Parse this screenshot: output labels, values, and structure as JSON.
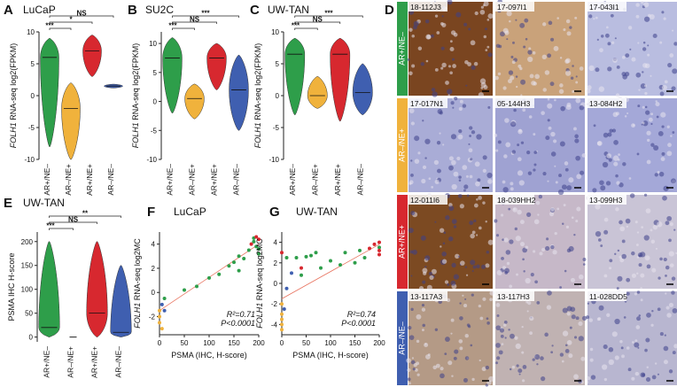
{
  "chart_data": [
    {
      "type": "violin",
      "panel": "A",
      "title": "LuCaP",
      "ylabel_gene": "FOLH1",
      "ylabel": " RNA-seq log2(FPKM)",
      "categories": [
        "AR+/NE–",
        "AR–/NE+",
        "AR+/NE+",
        "AR–/NE–"
      ],
      "colors": [
        "#2e9e4a",
        "#f0b23c",
        "#d7282f",
        "#3f5fb0"
      ],
      "values": [
        6,
        -2,
        7,
        1.5
      ],
      "mins": [
        -8,
        -10,
        3,
        1.2
      ],
      "maxs": [
        9,
        2,
        9.5,
        1.8
      ],
      "ylim": [
        -10,
        10
      ],
      "yticks": [
        -10,
        -5,
        0,
        5,
        10
      ],
      "significance": [
        "***",
        "*",
        "NS"
      ]
    },
    {
      "type": "violin",
      "panel": "B",
      "title": "SU2C",
      "ylabel_gene": "FOLH1",
      "ylabel": " RNA-seq log2(FPKM)",
      "categories": [
        "AR+/NE–",
        "AR–/NE+",
        "AR+/NE+",
        "AR–/NE–"
      ],
      "colors": [
        "#2e9e4a",
        "#f0b23c",
        "#d7282f",
        "#3f5fb0"
      ],
      "values": [
        7.5,
        0.5,
        7.5,
        2
      ],
      "mins": [
        -2,
        -3,
        2,
        -5
      ],
      "maxs": [
        11,
        3,
        10,
        8
      ],
      "ylim": [
        -10,
        12
      ],
      "yticks": [
        -10,
        -5,
        0,
        5,
        10
      ],
      "significance": [
        "***",
        "NS",
        "***"
      ]
    },
    {
      "type": "violin",
      "panel": "C",
      "title": "UW-TAN",
      "ylabel_gene": "FOLH1",
      "ylabel": " RNA-seq log2(FPKM)",
      "categories": [
        "AR+/NE–",
        "AR–/NE+",
        "AR+/NE+",
        "AR–/NE–"
      ],
      "colors": [
        "#2e9e4a",
        "#f0b23c",
        "#d7282f",
        "#3f5fb0"
      ],
      "values": [
        6.5,
        0,
        6.5,
        0.5
      ],
      "mins": [
        -3,
        -2,
        -4,
        -3
      ],
      "maxs": [
        9,
        3,
        9,
        5
      ],
      "ylim": [
        -10,
        10
      ],
      "yticks": [
        -10,
        -5,
        0,
        5,
        10
      ],
      "significance": [
        "***",
        "NS",
        "***"
      ]
    },
    {
      "type": "violin",
      "panel": "E",
      "title": "UW-TAN",
      "ylabel": "PSMA IHC H-score",
      "categories": [
        "AR+/NE–",
        "AR–/NE+",
        "AR+/NE+",
        "AR–/NE–"
      ],
      "colors": [
        "#2e9e4a",
        "#f0b23c",
        "#d7282f",
        "#3f5fb0"
      ],
      "values": [
        20,
        0,
        50,
        10
      ],
      "mins": [
        0,
        0,
        0,
        0
      ],
      "maxs": [
        200,
        0,
        200,
        150
      ],
      "ylim": [
        -10,
        220
      ],
      "yticks": [
        0,
        50,
        100,
        150,
        200
      ],
      "significance": [
        "***",
        "NS",
        "**"
      ]
    },
    {
      "type": "scatter",
      "panel": "F",
      "title": "LuCaP",
      "xlabel": "PSMA (IHC, H-score)",
      "ylabel_gene": "FOLH1",
      "ylabel": " RNA-seq log2MC",
      "xlim": [
        0,
        200
      ],
      "xticks": [
        0,
        50,
        100,
        150,
        200
      ],
      "ylim": [
        -3.5,
        5
      ],
      "yticks": [
        -2,
        0,
        2,
        4
      ],
      "series": [
        {
          "color": "#2e9e4a",
          "x": [
            120,
            150,
            160,
            170,
            180,
            190,
            195,
            200,
            200,
            160,
            140,
            100,
            75,
            50,
            10,
            190
          ],
          "y": [
            1.5,
            2.5,
            3,
            2.8,
            3.5,
            4.2,
            3.8,
            3.2,
            3.6,
            1.8,
            2.2,
            1.2,
            0.5,
            0.2,
            -0.5,
            4.5
          ]
        },
        {
          "color": "#d7282f",
          "x": [
            195,
            200,
            185
          ],
          "y": [
            4.6,
            4.4,
            4
          ]
        },
        {
          "color": "#f0b23c",
          "x": [
            0,
            0,
            0,
            5
          ],
          "y": [
            -1.5,
            -2,
            -2.5,
            -3
          ]
        },
        {
          "color": "#3f5fb0",
          "x": [
            5,
            10
          ],
          "y": [
            -1,
            -1.5
          ]
        }
      ],
      "fit": {
        "color": "#e8735f",
        "x": [
          0,
          200
        ],
        "y": [
          -1.5,
          4
        ]
      },
      "annotations": [
        "R²=0.71",
        "P<0.0001"
      ]
    },
    {
      "type": "scatter",
      "panel": "G",
      "title": "UW-TAN",
      "xlabel": "PSMA (IHC, H-score)",
      "ylabel_gene": "FOLH1",
      "ylabel": " RNA-seq log2MC",
      "xlim": [
        0,
        200
      ],
      "xticks": [
        0,
        50,
        100,
        150,
        200
      ],
      "ylim": [
        -5,
        5
      ],
      "yticks": [
        -4,
        -2,
        0,
        2,
        4
      ],
      "series": [
        {
          "color": "#2e9e4a",
          "x": [
            10,
            30,
            50,
            60,
            70,
            100,
            120,
            130,
            150,
            160,
            170,
            200,
            80,
            40
          ],
          "y": [
            2.5,
            2.5,
            2.6,
            2.7,
            3,
            2.2,
            1.8,
            3,
            2,
            3.2,
            2.5,
            3.5,
            1.5,
            0.8
          ]
        },
        {
          "color": "#d7282f",
          "x": [
            0,
            40,
            190,
            200,
            200,
            200,
            180
          ],
          "y": [
            3,
            1.5,
            3.8,
            4,
            3.2,
            2.8,
            3.4
          ]
        },
        {
          "color": "#3f5fb0",
          "x": [
            20,
            10,
            5
          ],
          "y": [
            1,
            -0.5,
            -2.5
          ]
        },
        {
          "color": "#f0b23c",
          "x": [
            0,
            0,
            0,
            0,
            0
          ],
          "y": [
            -2,
            -3,
            -4,
            -4.5,
            -3.5
          ]
        }
      ],
      "fit": {
        "color": "#e8735f",
        "x": [
          0,
          200
        ],
        "y": [
          -1.5,
          3.8
        ]
      },
      "annotations": [
        "R²=0.74",
        "P<0.0001"
      ]
    }
  ],
  "ihc": {
    "panel": "D",
    "rows": [
      {
        "label": "AR+/NE–",
        "color": "#2e9e4a",
        "samples": [
          "18-112J3",
          "17-097I1",
          "17-043I1"
        ]
      },
      {
        "label": "AR–/NE+",
        "color": "#f0b23c",
        "samples": [
          "17-017N1",
          "05-144H3",
          "13-084H2"
        ]
      },
      {
        "label": "AR+/NE+",
        "color": "#d7282f",
        "samples": [
          "12-011I6",
          "18-039HH2",
          "13-099H3"
        ]
      },
      {
        "label": "AR–/NE–",
        "color": "#3f5fb0",
        "samples": [
          "13-117A3",
          "13-117H3",
          "11-028DD5"
        ]
      }
    ]
  }
}
